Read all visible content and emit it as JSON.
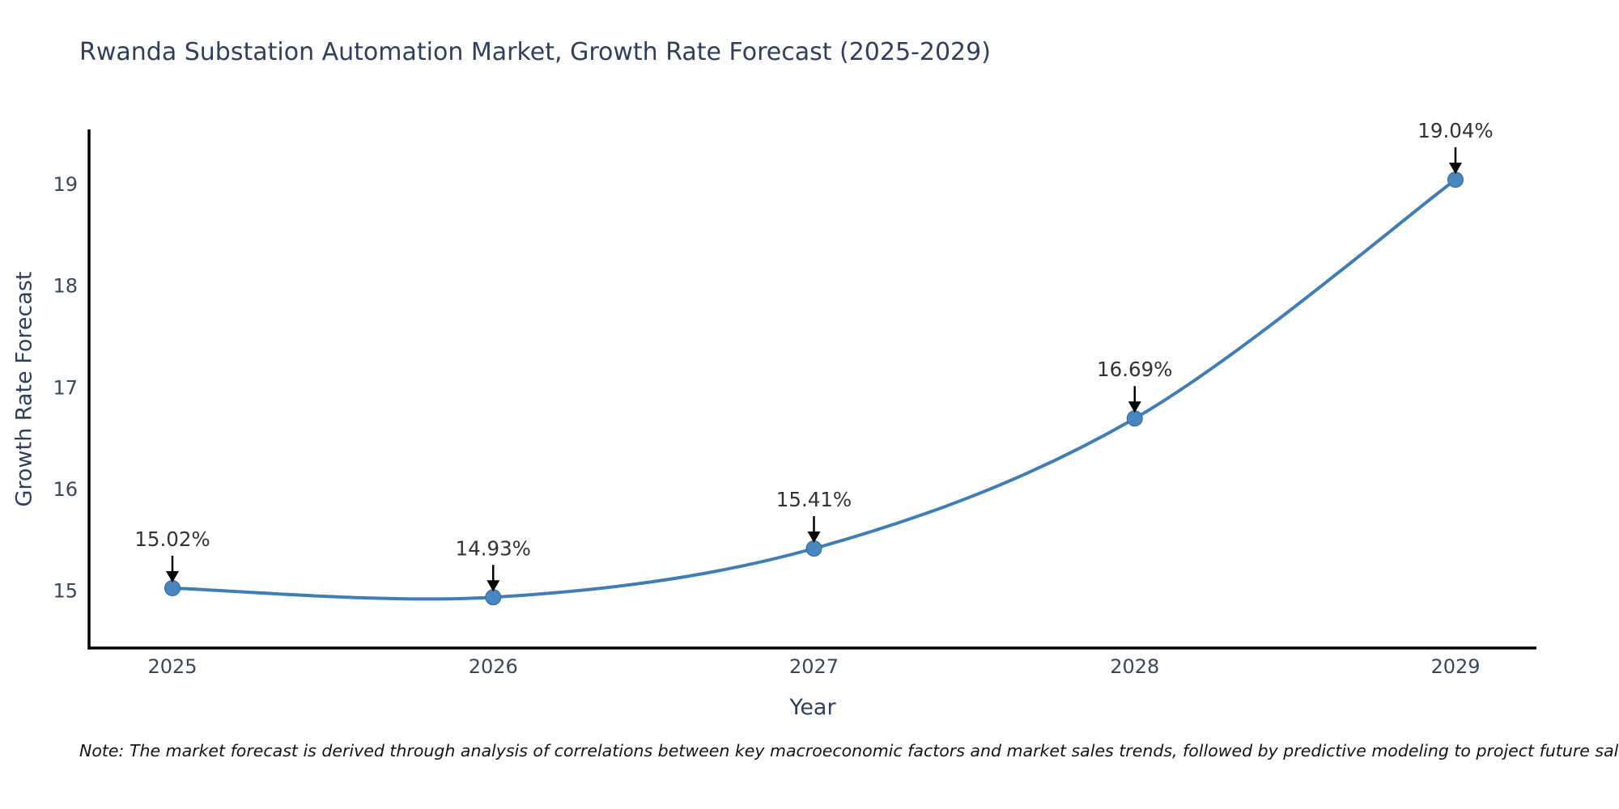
{
  "chart_data": {
    "type": "line",
    "title": "Rwanda Substation Automation Market, Growth Rate Forecast (2025-2029)",
    "xlabel": "Year",
    "ylabel": "Growth Rate Forecast",
    "categories": [
      "2025",
      "2026",
      "2027",
      "2028",
      "2029"
    ],
    "values": [
      15.02,
      14.93,
      15.41,
      16.69,
      19.04
    ],
    "point_labels": [
      "15.02%",
      "14.93%",
      "15.41%",
      "16.69%",
      "19.04%"
    ],
    "yticks": [
      15,
      16,
      17,
      18,
      19
    ],
    "ylim": [
      14.43,
      19.53
    ],
    "grid": false,
    "legend": false,
    "line_smoothing": "spline",
    "line_color": "#3f7db7",
    "marker_color": "#4886bd",
    "marker_edge_color": "#2f6699",
    "arrow_color": "#000000",
    "axis_color": "#000000",
    "title_color": "#2e3f5f",
    "tick_color": "#3a4757",
    "annotation_color": "#333333"
  },
  "note": "Note: The market forecast is derived through analysis of correlations between key macroeconomic factors and market sales trends, followed by predictive modeling to project future sales."
}
